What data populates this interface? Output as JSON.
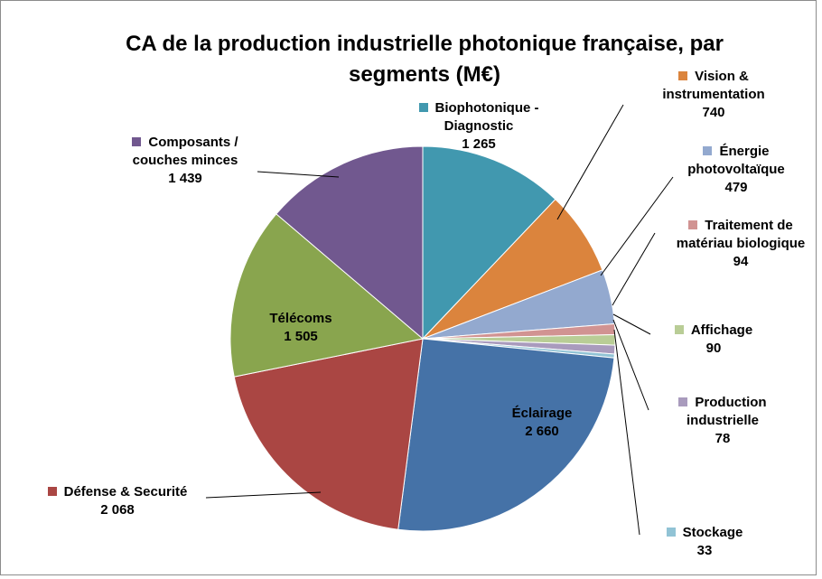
{
  "chart_data": {
    "type": "pie",
    "title": "CA de la production industrielle photonique française, par segments (M€)",
    "categories": [
      "Biophotonique - Diagnostic",
      "Vision & instrumentation",
      "Énergie photovoltaïque",
      "Traitement de matériau biologique",
      "Affichage",
      "Production industrielle",
      "Stockage",
      "Éclairage",
      "Défense & Securité",
      "Télécoms",
      "Composants / couches minces"
    ],
    "values": [
      1265,
      740,
      479,
      94,
      90,
      78,
      33,
      2660,
      2068,
      1505,
      1439
    ],
    "value_labels": [
      "1 265",
      "740",
      "479",
      "94",
      "90",
      "78",
      "33",
      "2 660",
      "2 068",
      "1 505",
      "1 439"
    ],
    "colors": [
      "#4198af",
      "#db843d",
      "#93a9cf",
      "#d19392",
      "#b9cd96",
      "#a99bbd",
      "#91c3d5",
      "#4572a7",
      "#aa4643",
      "#89a54e",
      "#71588f"
    ]
  }
}
